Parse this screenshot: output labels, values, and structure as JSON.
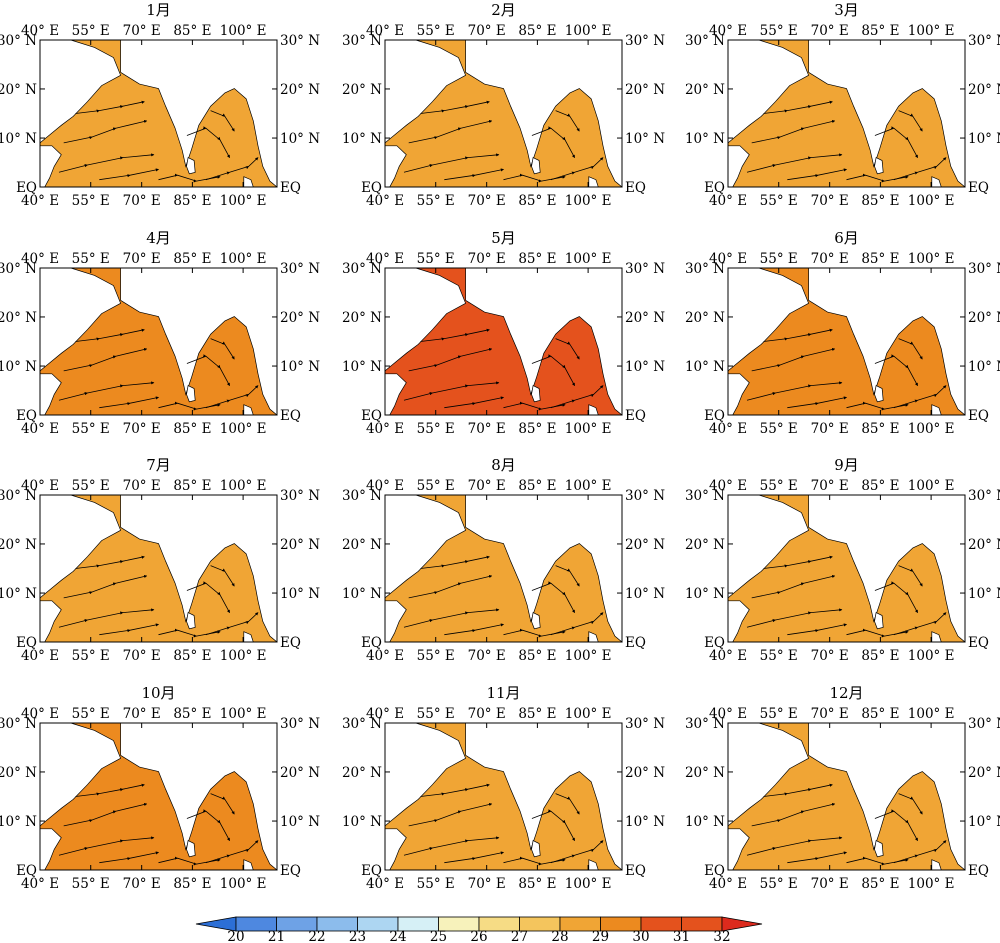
{
  "figure": {
    "panels": [
      {
        "title": "1月"
      },
      {
        "title": "2月"
      },
      {
        "title": "3月"
      },
      {
        "title": "4月"
      },
      {
        "title": "5月"
      },
      {
        "title": "6月"
      },
      {
        "title": "7月"
      },
      {
        "title": "8月"
      },
      {
        "title": "9月"
      },
      {
        "title": "10月"
      },
      {
        "title": "11月"
      },
      {
        "title": "12月"
      }
    ],
    "lon_ticks": [
      "40° E",
      "55° E",
      "70° E",
      "85° E",
      "100° E"
    ],
    "lat_ticks": [
      "30° N",
      "20° N",
      "10° N",
      "EQ"
    ],
    "extent": {
      "lon": [
        40,
        110
      ],
      "lat": [
        0,
        30
      ]
    },
    "dominant_value": [
      28.5,
      28.5,
      29,
      30,
      30.5,
      29.5,
      29,
      29,
      29,
      29.5,
      29,
      28.5
    ],
    "colorbar": {
      "labels": [
        "20",
        "21",
        "22",
        "23",
        "24",
        "25",
        "26",
        "27",
        "28",
        "29",
        "30",
        "31",
        "32"
      ],
      "colors": [
        "#2c6fd6",
        "#4e88e0",
        "#6ea2e6",
        "#8cbcec",
        "#add6f2",
        "#d6f0f6",
        "#f7f2bb",
        "#f6dc85",
        "#f4c55d",
        "#f0a535",
        "#ec8a1f",
        "#e4521d",
        "#dc2a1d"
      ]
    }
  }
}
